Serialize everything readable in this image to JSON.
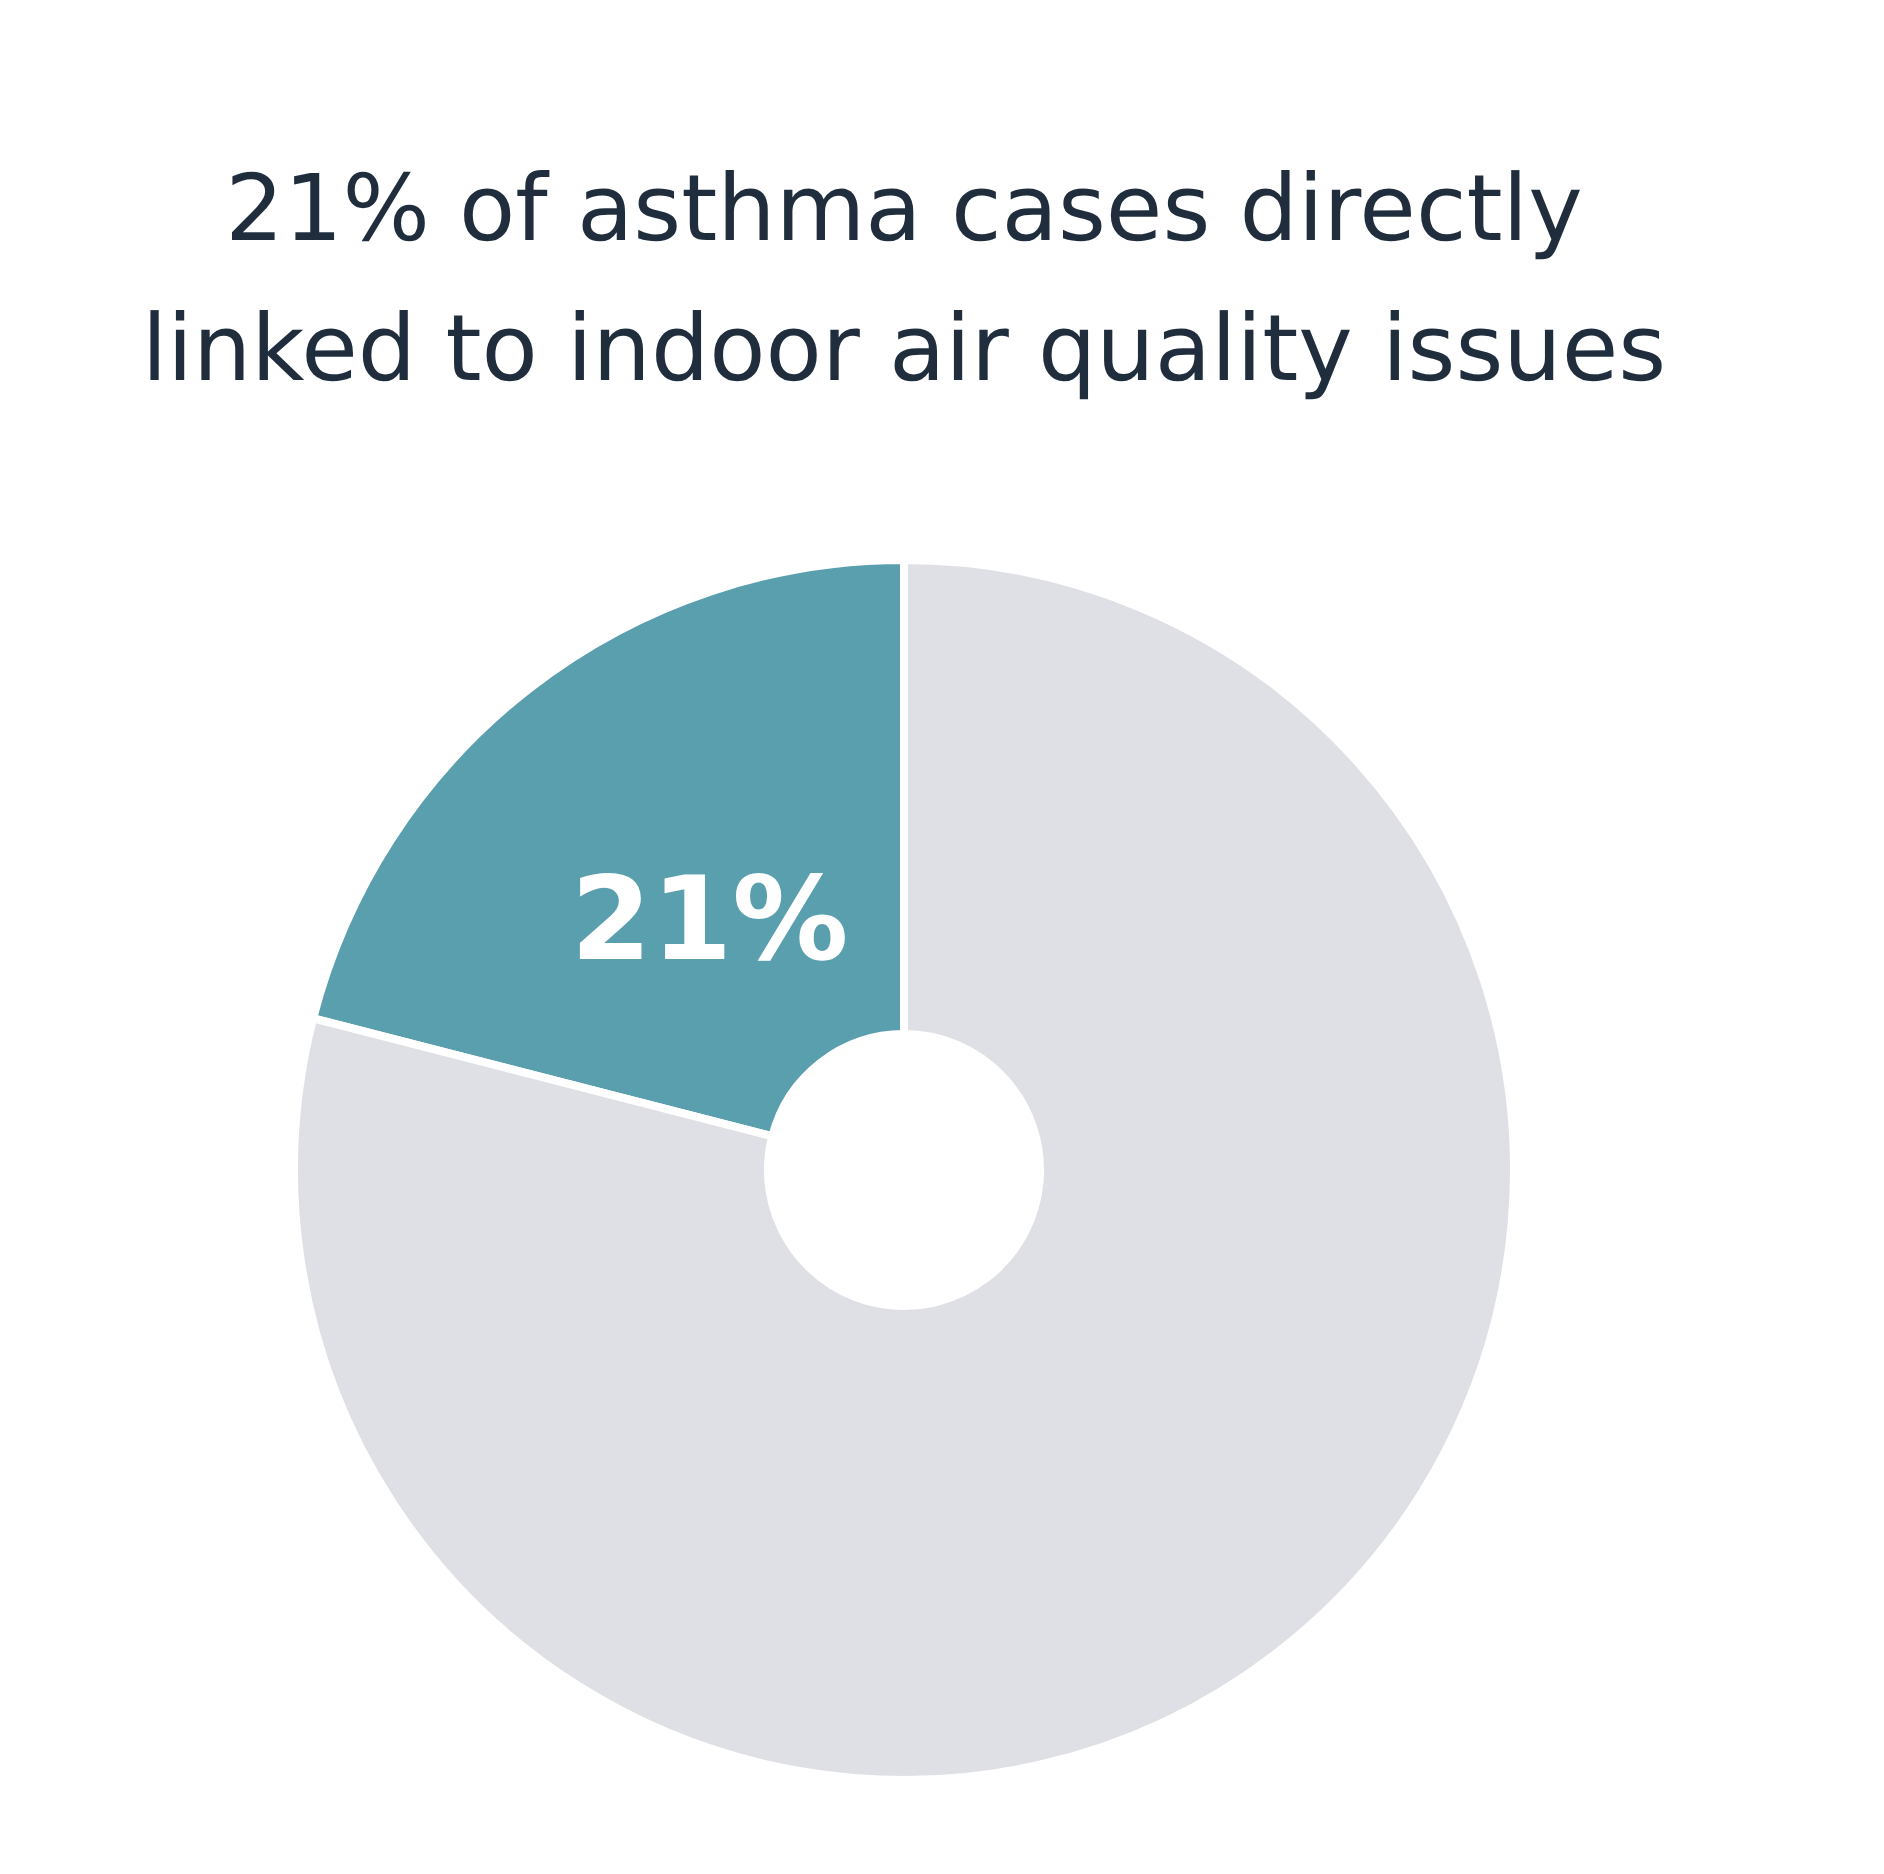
{
  "chart_data": {
    "type": "donut",
    "title": "21% of asthma cases directly linked to indoor air quality issues",
    "categories": [
      null,
      null
    ],
    "values": [
      21,
      79
    ],
    "colors": [
      "#5a9fae",
      "#dfe0e5"
    ],
    "value_labels": [
      "21%",
      null
    ]
  }
}
